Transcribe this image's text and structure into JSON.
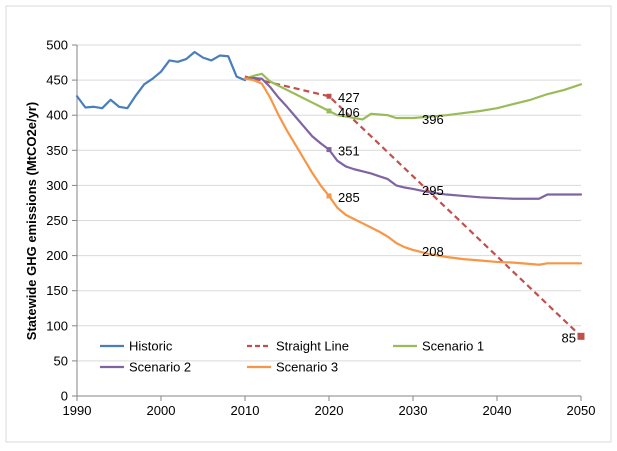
{
  "chart_data": {
    "type": "line",
    "title": "",
    "xlabel": "",
    "ylabel": "Statewide GHG emissions (MtCO2e/yr)",
    "xlim": [
      1990,
      2050
    ],
    "ylim": [
      0,
      500
    ],
    "x_ticks": [
      "1990",
      "2000",
      "2010",
      "2020",
      "2030",
      "2040",
      "2050"
    ],
    "y_ticks": [
      "0",
      "50",
      "100",
      "150",
      "200",
      "250",
      "300",
      "350",
      "400",
      "450",
      "500"
    ],
    "grid": "horizontal",
    "legend_placement": "bottom-left-inside",
    "series": [
      {
        "name": "Historic",
        "color": "#4a7ebb",
        "dash": "solid",
        "x": [
          1990,
          1991,
          1992,
          1993,
          1994,
          1995,
          1996,
          1997,
          1998,
          1999,
          2000,
          2001,
          2002,
          2003,
          2004,
          2005,
          2006,
          2007,
          2008,
          2009,
          2010
        ],
        "y": [
          427,
          411,
          412,
          410,
          422,
          412,
          410,
          428,
          444,
          452,
          462,
          478,
          476,
          480,
          490,
          482,
          478,
          485,
          484,
          455,
          450
        ]
      },
      {
        "name": "Straight Line",
        "color": "#c0504d",
        "dash": "dashed",
        "x": [
          2010,
          2020,
          2050
        ],
        "y": [
          455,
          427,
          85
        ]
      },
      {
        "name": "Scenario 1",
        "color": "#9bbb59",
        "dash": "solid",
        "x": [
          2010,
          2011,
          2012,
          2013,
          2014,
          2015,
          2016,
          2017,
          2018,
          2019,
          2020,
          2021,
          2022,
          2023,
          2024,
          2025,
          2026,
          2027,
          2028,
          2029,
          2030,
          2032,
          2034,
          2036,
          2038,
          2040,
          2042,
          2044,
          2046,
          2048,
          2050
        ],
        "y": [
          452,
          456,
          459,
          448,
          442,
          436,
          430,
          424,
          418,
          412,
          406,
          400,
          398,
          396,
          394,
          402,
          401,
          400,
          396,
          396,
          396,
          398,
          400,
          403,
          406,
          410,
          416,
          422,
          430,
          436,
          444
        ]
      },
      {
        "name": "Scenario 2",
        "color": "#8064a2",
        "dash": "solid",
        "x": [
          2010,
          2011,
          2012,
          2013,
          2014,
          2015,
          2016,
          2017,
          2018,
          2019,
          2020,
          2021,
          2022,
          2023,
          2024,
          2025,
          2026,
          2027,
          2028,
          2029,
          2030,
          2032,
          2034,
          2036,
          2038,
          2040,
          2042,
          2044,
          2045,
          2046,
          2048,
          2050
        ],
        "y": [
          452,
          453,
          452,
          440,
          425,
          412,
          398,
          384,
          370,
          360,
          351,
          335,
          327,
          323,
          320,
          317,
          313,
          309,
          300,
          297,
          295,
          290,
          287,
          285,
          283,
          282,
          281,
          281,
          281,
          287,
          287,
          287
        ]
      },
      {
        "name": "Scenario 3",
        "color": "#f79646",
        "dash": "solid",
        "x": [
          2010,
          2011,
          2012,
          2013,
          2014,
          2015,
          2016,
          2017,
          2018,
          2019,
          2020,
          2021,
          2022,
          2023,
          2024,
          2025,
          2026,
          2027,
          2028,
          2029,
          2030,
          2032,
          2034,
          2036,
          2038,
          2040,
          2042,
          2044,
          2045,
          2046,
          2048,
          2050
        ],
        "y": [
          452,
          450,
          445,
          425,
          400,
          378,
          358,
          338,
          318,
          300,
          285,
          268,
          258,
          252,
          246,
          240,
          234,
          227,
          218,
          212,
          208,
          202,
          198,
          195,
          193,
          191,
          190,
          188,
          187,
          189,
          189,
          189
        ]
      }
    ],
    "markers": [
      {
        "series": "Straight Line",
        "x": 2020,
        "y": 427,
        "shape": "square"
      },
      {
        "series": "Straight Line",
        "x": 2050,
        "y": 85,
        "shape": "square"
      },
      {
        "series": "Scenario 1",
        "x": 2020,
        "y": 406,
        "shape": "square"
      },
      {
        "series": "Scenario 2",
        "x": 2020,
        "y": 351,
        "shape": "square"
      },
      {
        "series": "Scenario 3",
        "x": 2020,
        "y": 285,
        "shape": "square"
      }
    ],
    "annotations": [
      {
        "text": "427",
        "x": 2020,
        "y": 427,
        "side": "right"
      },
      {
        "text": "406",
        "x": 2020,
        "y": 406,
        "side": "right"
      },
      {
        "text": "351",
        "x": 2020,
        "y": 351,
        "side": "right"
      },
      {
        "text": "285",
        "x": 2020,
        "y": 285,
        "side": "right"
      },
      {
        "text": "396",
        "x": 2030,
        "y": 396,
        "side": "right"
      },
      {
        "text": "295",
        "x": 2030,
        "y": 295,
        "side": "right"
      },
      {
        "text": "208",
        "x": 2030,
        "y": 208,
        "side": "right"
      },
      {
        "text": "85",
        "x": 2050,
        "y": 85,
        "side": "left"
      }
    ],
    "legend": {
      "rows": [
        [
          "Historic",
          "Straight Line",
          "Scenario 1"
        ],
        [
          "Scenario 2",
          "Scenario 3"
        ]
      ]
    }
  }
}
